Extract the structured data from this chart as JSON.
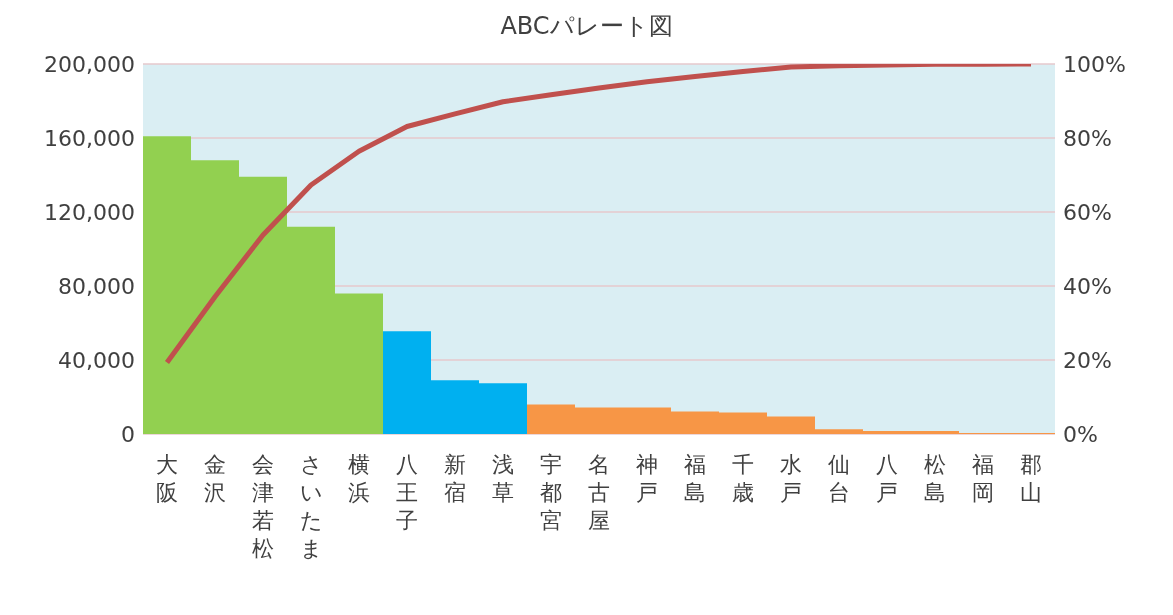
{
  "chart_data": {
    "type": "bar",
    "title": "ABCパレート図",
    "categories": [
      "大阪",
      "金沢",
      "会津若松",
      "さいたま",
      "横浜",
      "八王子",
      "新宿",
      "浅草",
      "宇都宮",
      "名古屋",
      "神戸",
      "福島",
      "千歳",
      "水戸",
      "仙台",
      "八戸",
      "松島",
      "福岡",
      "郡山"
    ],
    "series": [
      {
        "colors": [
          "#92d050",
          "#92d050",
          "#92d050",
          "#92d050",
          "#92d050",
          "#00b0f0",
          "#00b0f0",
          "#00b0f0",
          "#f79646",
          "#f79646",
          "#f79646",
          "#f79646",
          "#f79646",
          "#f79646",
          "#f79646",
          "#f79646",
          "#f79646",
          "#f79646",
          "#f79646"
        ],
        "values": [
          161000,
          148000,
          139000,
          112000,
          76000,
          55500,
          29000,
          27500,
          15900,
          14300,
          14300,
          12200,
          11600,
          9500,
          2600,
          1600,
          1600,
          500,
          500
        ]
      },
      {
        "type": "line",
        "axis": "y2",
        "color": "#c0504d",
        "values": [
          19.3,
          37.1,
          53.8,
          67.3,
          76.4,
          83.1,
          86.5,
          89.8,
          91.7,
          93.5,
          95.2,
          96.6,
          98.0,
          99.2,
          99.5,
          99.7,
          99.9,
          99.9,
          100
        ]
      }
    ],
    "ylim": [
      0,
      200000
    ],
    "yticks": [
      {
        "value": 0,
        "label": "0"
      },
      {
        "value": 40000,
        "label": "40,000"
      },
      {
        "value": 80000,
        "label": "80,000"
      },
      {
        "value": 120000,
        "label": "120,000"
      },
      {
        "value": 160000,
        "label": "160,000"
      },
      {
        "value": 200000,
        "label": "200,000"
      }
    ],
    "y2lim": [
      0,
      100
    ],
    "y2ticks": [
      {
        "value": 0,
        "label": "0%"
      },
      {
        "value": 20,
        "label": "20%"
      },
      {
        "value": 40,
        "label": "40%"
      },
      {
        "value": 60,
        "label": "60%"
      },
      {
        "value": 80,
        "label": "80%"
      },
      {
        "value": 100,
        "label": "100%"
      }
    ],
    "grid": "y",
    "marker": "none"
  }
}
